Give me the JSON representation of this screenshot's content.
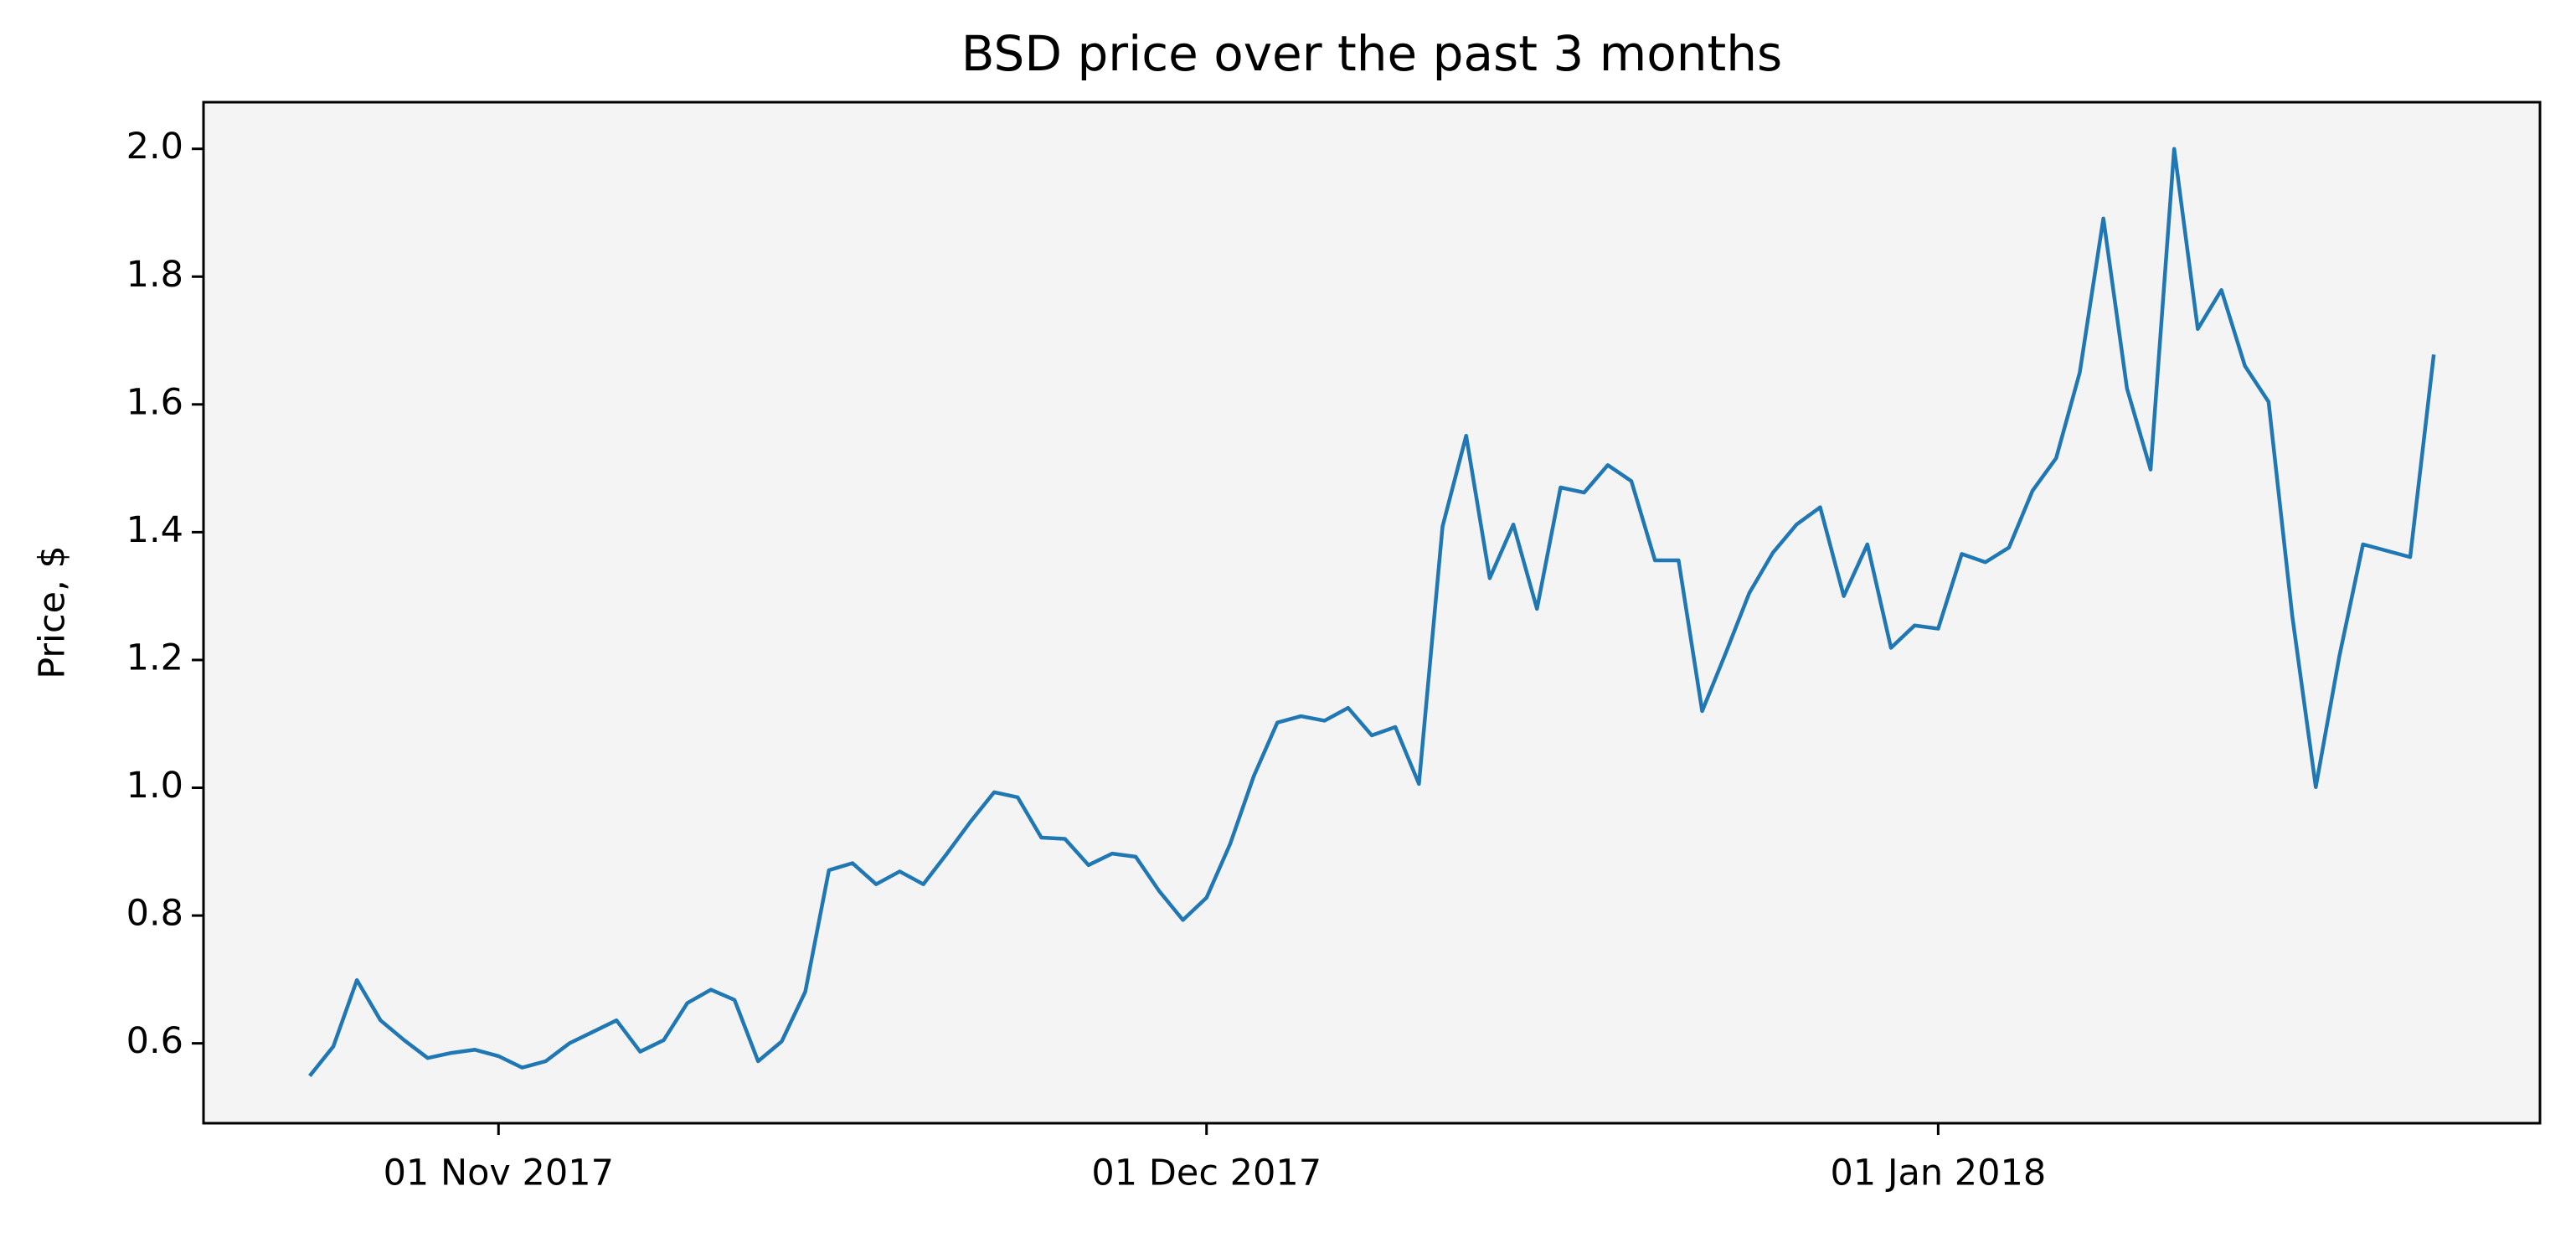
{
  "chart_data": {
    "type": "line",
    "title": "BSD price over the past 3 months",
    "y_label": "Price, $",
    "x": [
      "2017-10-24",
      "2017-10-25",
      "2017-10-26",
      "2017-10-27",
      "2017-10-28",
      "2017-10-29",
      "2017-10-30",
      "2017-10-31",
      "2017-11-01",
      "2017-11-02",
      "2017-11-03",
      "2017-11-04",
      "2017-11-05",
      "2017-11-06",
      "2017-11-07",
      "2017-11-08",
      "2017-11-09",
      "2017-11-10",
      "2017-11-11",
      "2017-11-12",
      "2017-11-13",
      "2017-11-14",
      "2017-11-15",
      "2017-11-16",
      "2017-11-17",
      "2017-11-18",
      "2017-11-19",
      "2017-11-20",
      "2017-11-21",
      "2017-11-22",
      "2017-11-23",
      "2017-11-24",
      "2017-11-25",
      "2017-11-26",
      "2017-11-27",
      "2017-11-28",
      "2017-11-29",
      "2017-11-30",
      "2017-12-01",
      "2017-12-02",
      "2017-12-03",
      "2017-12-04",
      "2017-12-05",
      "2017-12-06",
      "2017-12-07",
      "2017-12-08",
      "2017-12-09",
      "2017-12-10",
      "2017-12-11",
      "2017-12-12",
      "2017-12-13",
      "2017-12-14",
      "2017-12-15",
      "2017-12-16",
      "2017-12-17",
      "2017-12-18",
      "2017-12-19",
      "2017-12-20",
      "2017-12-21",
      "2017-12-22",
      "2017-12-23",
      "2017-12-24",
      "2017-12-25",
      "2017-12-26",
      "2017-12-27",
      "2017-12-28",
      "2017-12-29",
      "2017-12-30",
      "2017-12-31",
      "2018-01-01",
      "2018-01-02",
      "2018-01-03",
      "2018-01-04",
      "2018-01-05",
      "2018-01-06",
      "2018-01-07",
      "2018-01-08",
      "2018-01-09",
      "2018-01-10",
      "2018-01-11",
      "2018-01-12",
      "2018-01-13",
      "2018-01-14",
      "2018-01-15",
      "2018-01-16",
      "2018-01-17",
      "2018-01-18",
      "2018-01-19",
      "2018-01-20",
      "2018-01-21",
      "2018-01-22"
    ],
    "values": [
      0.549,
      0.595,
      0.699,
      0.636,
      0.605,
      0.577,
      0.585,
      0.59,
      0.58,
      0.562,
      0.572,
      0.6,
      0.618,
      0.636,
      0.587,
      0.605,
      0.663,
      0.684,
      0.668,
      0.572,
      0.603,
      0.681,
      0.871,
      0.882,
      0.849,
      0.869,
      0.849,
      0.897,
      0.947,
      0.993,
      0.985,
      0.922,
      0.92,
      0.879,
      0.897,
      0.892,
      0.838,
      0.793,
      0.828,
      0.912,
      1.018,
      1.102,
      1.112,
      1.105,
      1.125,
      1.082,
      1.095,
      1.006,
      1.409,
      1.551,
      1.328,
      1.412,
      1.28,
      1.47,
      1.462,
      1.505,
      1.48,
      1.356,
      1.356,
      1.12,
      1.211,
      1.305,
      1.368,
      1.412,
      1.439,
      1.3,
      1.381,
      1.219,
      1.254,
      1.249,
      1.366,
      1.353,
      1.376,
      1.465,
      1.516,
      1.65,
      1.891,
      1.625,
      1.498,
      2.0,
      1.718,
      1.779,
      1.66,
      1.604,
      1.27,
      1.001,
      1.206,
      1.381,
      1.371,
      1.361,
      1.678
    ],
    "color": "#1f77b4",
    "xlim": [
      "2017-10-19T12:00:00Z",
      "2018-01-26T12:00:00Z"
    ],
    "xticks": [
      {
        "value": "2017-11-01",
        "label": "01 Nov 2017"
      },
      {
        "value": "2017-12-01",
        "label": "01 Dec 2017"
      },
      {
        "value": "2018-01-01",
        "label": "01 Jan 2018"
      }
    ],
    "ylim": [
      0.475,
      2.073
    ],
    "yticks": [
      {
        "value": 0.6,
        "label": "0.6"
      },
      {
        "value": 0.8,
        "label": "0.8"
      },
      {
        "value": 1.0,
        "label": "1.0"
      },
      {
        "value": 1.2,
        "label": "1.2"
      },
      {
        "value": 1.4,
        "label": "1.4"
      },
      {
        "value": 1.6,
        "label": "1.6"
      },
      {
        "value": 1.8,
        "label": "1.8"
      },
      {
        "value": 2.0,
        "label": "2.0"
      }
    ],
    "grid": false
  }
}
